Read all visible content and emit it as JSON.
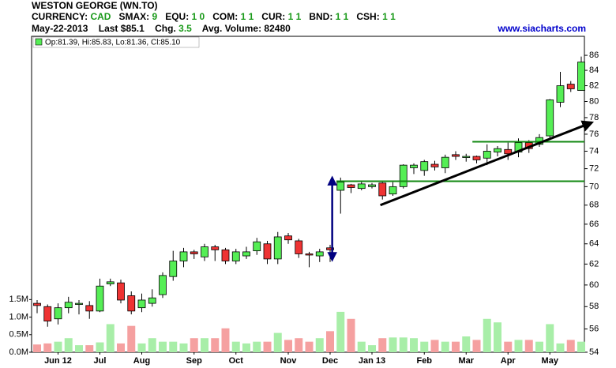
{
  "header": {
    "title": "WESTON GEORGE (WN.TO)",
    "fields": [
      {
        "label": "CURRENCY:",
        "value": "CAD"
      },
      {
        "label": "SMAX:",
        "value": "9"
      },
      {
        "label": "EQU:",
        "value": "1 0"
      },
      {
        "label": "COM:",
        "value": "1 1"
      },
      {
        "label": "CUR:",
        "value": "1 1"
      },
      {
        "label": "BND:",
        "value": "1 1"
      },
      {
        "label": "CSH:",
        "value": "1 1"
      }
    ],
    "date": "May-22-2013",
    "last_label": "Last",
    "last": "$85.1",
    "chg_label": "Chg.",
    "chg": "3.5",
    "avg_label": "Avg. Volume:",
    "avg": "82480",
    "site": "www.siacharts.com"
  },
  "chart_data": {
    "type": "candlestick",
    "legend": "Op:81.39, Hi:85.83, Lo:81.36, Cl:85.10",
    "categories": [
      null,
      null,
      "Jun 12",
      null,
      null,
      null,
      "Jul",
      null,
      null,
      null,
      "Aug",
      null,
      null,
      null,
      null,
      "Sep",
      null,
      null,
      null,
      "Oct",
      null,
      null,
      null,
      null,
      "Nov",
      null,
      null,
      null,
      "Dec",
      null,
      null,
      null,
      "Jan 13",
      null,
      null,
      null,
      null,
      "Feb",
      null,
      null,
      null,
      "Mar",
      null,
      null,
      null,
      "Apr",
      null,
      null,
      null,
      "May",
      null,
      null,
      null
    ],
    "open": [
      58.3,
      58.0,
      56.9,
      57.9,
      58.2,
      58.1,
      57.6,
      60.1,
      60.2,
      59.0,
      57.9,
      58.3,
      59.1,
      60.8,
      62.3,
      63.2,
      62.7,
      63.7,
      63.4,
      62.3,
      62.8,
      63.3,
      64.0,
      62.5,
      64.8,
      64.3,
      63.0,
      62.8,
      63.6,
      69.6,
      70.2,
      69.8,
      70.0,
      70.4,
      69.2,
      70.0,
      72.1,
      71.8,
      72.5,
      72.1,
      73.6,
      73.3,
      73.4,
      73.2,
      73.9,
      74.2,
      73.9,
      75.0,
      74.8,
      75.8,
      79.9,
      82.2,
      81.39
    ],
    "high": [
      58.6,
      58.2,
      58.3,
      58.9,
      58.6,
      58.5,
      60.6,
      60.6,
      60.5,
      59.4,
      59.2,
      59.6,
      61.2,
      63.3,
      63.6,
      63.4,
      64.0,
      63.9,
      63.6,
      63.5,
      63.7,
      64.6,
      64.3,
      65.2,
      65.1,
      64.5,
      63.2,
      63.5,
      63.9,
      71.0,
      70.3,
      70.6,
      70.4,
      70.5,
      70.5,
      72.5,
      72.6,
      73.0,
      72.9,
      73.6,
      74.0,
      73.7,
      73.5,
      74.8,
      74.6,
      75.0,
      75.5,
      75.3,
      76.0,
      80.3,
      83.8,
      82.6,
      85.83
    ],
    "low": [
      57.4,
      56.2,
      56.4,
      57.4,
      57.3,
      56.9,
      57.5,
      59.9,
      58.3,
      57.3,
      57.5,
      58.0,
      58.8,
      60.4,
      61.7,
      62.5,
      62.3,
      62.3,
      62.0,
      62.0,
      62.5,
      62.9,
      62.0,
      62.0,
      64.0,
      62.6,
      61.7,
      62.2,
      62.2,
      67.1,
      69.3,
      69.6,
      69.8,
      68.6,
      69.0,
      69.8,
      71.4,
      71.2,
      71.8,
      71.5,
      73.0,
      72.8,
      72.6,
      72.4,
      73.4,
      73.0,
      73.3,
      73.8,
      74.5,
      75.5,
      79.3,
      81.2,
      81.36
    ],
    "close": [
      58.1,
      56.7,
      57.9,
      58.4,
      58.3,
      57.6,
      59.9,
      60.3,
      58.6,
      57.6,
      58.6,
      58.8,
      60.9,
      62.3,
      63.2,
      63.0,
      63.7,
      63.4,
      62.3,
      63.2,
      63.2,
      64.2,
      62.5,
      64.7,
      64.4,
      63.0,
      62.9,
      63.2,
      63.4,
      70.5,
      69.9,
      70.3,
      70.2,
      69.0,
      70.0,
      72.4,
      72.4,
      72.8,
      72.2,
      73.3,
      73.4,
      73.4,
      73.0,
      74.0,
      74.3,
      73.7,
      75.0,
      74.3,
      75.6,
      80.2,
      82.0,
      81.6,
      85.1
    ],
    "volume": [
      0.22,
      0.25,
      0.3,
      0.4,
      0.2,
      0.2,
      0.28,
      0.8,
      0.25,
      0.75,
      0.25,
      0.4,
      0.3,
      0.3,
      0.25,
      0.4,
      0.4,
      0.4,
      0.68,
      0.3,
      0.25,
      0.3,
      0.3,
      0.55,
      0.35,
      0.4,
      0.3,
      0.4,
      0.6,
      1.15,
      0.95,
      0.3,
      0.2,
      0.4,
      0.42,
      0.42,
      0.4,
      0.3,
      0.35,
      0.3,
      0.3,
      0.45,
      0.35,
      0.95,
      0.85,
      0.3,
      0.35,
      0.35,
      0.3,
      0.8,
      0.25,
      0.35,
      0.3
    ],
    "ylim": [
      54,
      88.6
    ],
    "ylog": true,
    "yticks": [
      54,
      56,
      58,
      60,
      62,
      64,
      66,
      68,
      70,
      72,
      74,
      76,
      78,
      80,
      82,
      84,
      86
    ],
    "y2lim": [
      0,
      9
    ],
    "y2ticks": [
      {
        "value": 0,
        "label": "0.0M"
      },
      {
        "value": 0.5,
        "label": "0.5M"
      },
      {
        "value": 1,
        "label": "1.0M"
      },
      {
        "value": 1.5,
        "label": "1.5M"
      }
    ],
    "up_color": "#55ee55",
    "down_color": "#ee3333",
    "up_volume_color": "#a8eea8",
    "down_volume_color": "#f5a0a0",
    "levels": [
      {
        "value": 70.6,
        "from": 28.6,
        "color": "#118811"
      },
      {
        "value": 75.1,
        "from": 41.6,
        "color": "#118811"
      }
    ],
    "trendline": {
      "from": [
        32.8,
        68.0
      ],
      "to": [
        53.0,
        77.4
      ],
      "color": "#000000"
    },
    "range_arrow": {
      "at": 28.2,
      "from": 62.4,
      "to": 71.0,
      "color": "#000080"
    }
  }
}
